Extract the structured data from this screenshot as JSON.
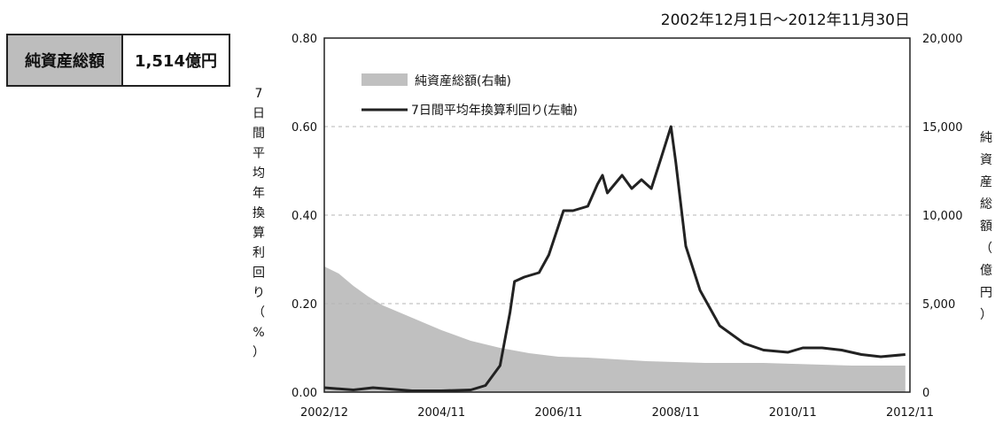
{
  "summary": {
    "label": "純資産総額",
    "value": "1,514億円"
  },
  "chart_data": {
    "type": "line",
    "title": "2002年12月1日～2012年11月30日",
    "ylabel_left": "7日間平均年換算利回り（%）",
    "ylabel_right": "純資産総額（億円）",
    "x_ticks": [
      "2002/12",
      "2004/11",
      "2006/11",
      "2008/11",
      "2010/11",
      "2012/11"
    ],
    "y_left": {
      "range": [
        0,
        0.8
      ],
      "ticks": [
        "0.00",
        "0.20",
        "0.40",
        "0.60",
        "0.80"
      ],
      "tick_values": [
        0,
        0.2,
        0.4,
        0.6,
        0.8
      ]
    },
    "y_right": {
      "range": [
        0,
        20000
      ],
      "ticks": [
        "0",
        "5,000",
        "10,000",
        "15,000",
        "20,000"
      ],
      "tick_values": [
        0,
        5000,
        10000,
        15000,
        20000
      ]
    },
    "grid": "horizontal-dashed",
    "legend_position": "top-left",
    "series": [
      {
        "name": "純資産総額(右軸)",
        "type": "area",
        "axis": "right",
        "color": "#c0c0c0",
        "points": [
          [
            "2002-12",
            7100
          ],
          [
            "2003-03",
            6700
          ],
          [
            "2003-06",
            6000
          ],
          [
            "2003-09",
            5400
          ],
          [
            "2003-12",
            4900
          ],
          [
            "2004-06",
            4200
          ],
          [
            "2004-12",
            3500
          ],
          [
            "2005-06",
            2900
          ],
          [
            "2005-12",
            2500
          ],
          [
            "2006-06",
            2200
          ],
          [
            "2006-12",
            2000
          ],
          [
            "2007-06",
            1950
          ],
          [
            "2007-12",
            1850
          ],
          [
            "2008-06",
            1750
          ],
          [
            "2008-12",
            1700
          ],
          [
            "2009-06",
            1650
          ],
          [
            "2009-12",
            1650
          ],
          [
            "2010-06",
            1650
          ],
          [
            "2010-12",
            1600
          ],
          [
            "2011-06",
            1550
          ],
          [
            "2011-12",
            1500
          ],
          [
            "2012-06",
            1500
          ],
          [
            "2012-11",
            1500
          ]
        ]
      },
      {
        "name": "7日間平均年換算利回り(左軸)",
        "type": "line",
        "axis": "left",
        "color": "#222222",
        "points": [
          [
            "2002-12",
            0.01
          ],
          [
            "2003-06",
            0.005
          ],
          [
            "2003-10",
            0.01
          ],
          [
            "2004-06",
            0.003
          ],
          [
            "2004-12",
            0.003
          ],
          [
            "2005-06",
            0.005
          ],
          [
            "2005-09",
            0.015
          ],
          [
            "2005-12",
            0.06
          ],
          [
            "2006-02",
            0.18
          ],
          [
            "2006-03",
            0.25
          ],
          [
            "2006-05",
            0.26
          ],
          [
            "2006-08",
            0.27
          ],
          [
            "2006-10",
            0.31
          ],
          [
            "2007-01",
            0.41
          ],
          [
            "2007-03",
            0.41
          ],
          [
            "2007-06",
            0.42
          ],
          [
            "2007-08",
            0.47
          ],
          [
            "2007-09",
            0.49
          ],
          [
            "2007-10",
            0.45
          ],
          [
            "2008-01",
            0.49
          ],
          [
            "2008-03",
            0.46
          ],
          [
            "2008-05",
            0.48
          ],
          [
            "2008-07",
            0.46
          ],
          [
            "2008-09",
            0.53
          ],
          [
            "2008-11",
            0.6
          ],
          [
            "2008-12",
            0.52
          ],
          [
            "2009-02",
            0.33
          ],
          [
            "2009-05",
            0.23
          ],
          [
            "2009-09",
            0.15
          ],
          [
            "2010-02",
            0.11
          ],
          [
            "2010-06",
            0.095
          ],
          [
            "2010-11",
            0.09
          ],
          [
            "2011-02",
            0.1
          ],
          [
            "2011-06",
            0.1
          ],
          [
            "2011-10",
            0.095
          ],
          [
            "2012-02",
            0.085
          ],
          [
            "2012-06",
            0.08
          ],
          [
            "2012-11",
            0.085
          ]
        ]
      }
    ]
  }
}
